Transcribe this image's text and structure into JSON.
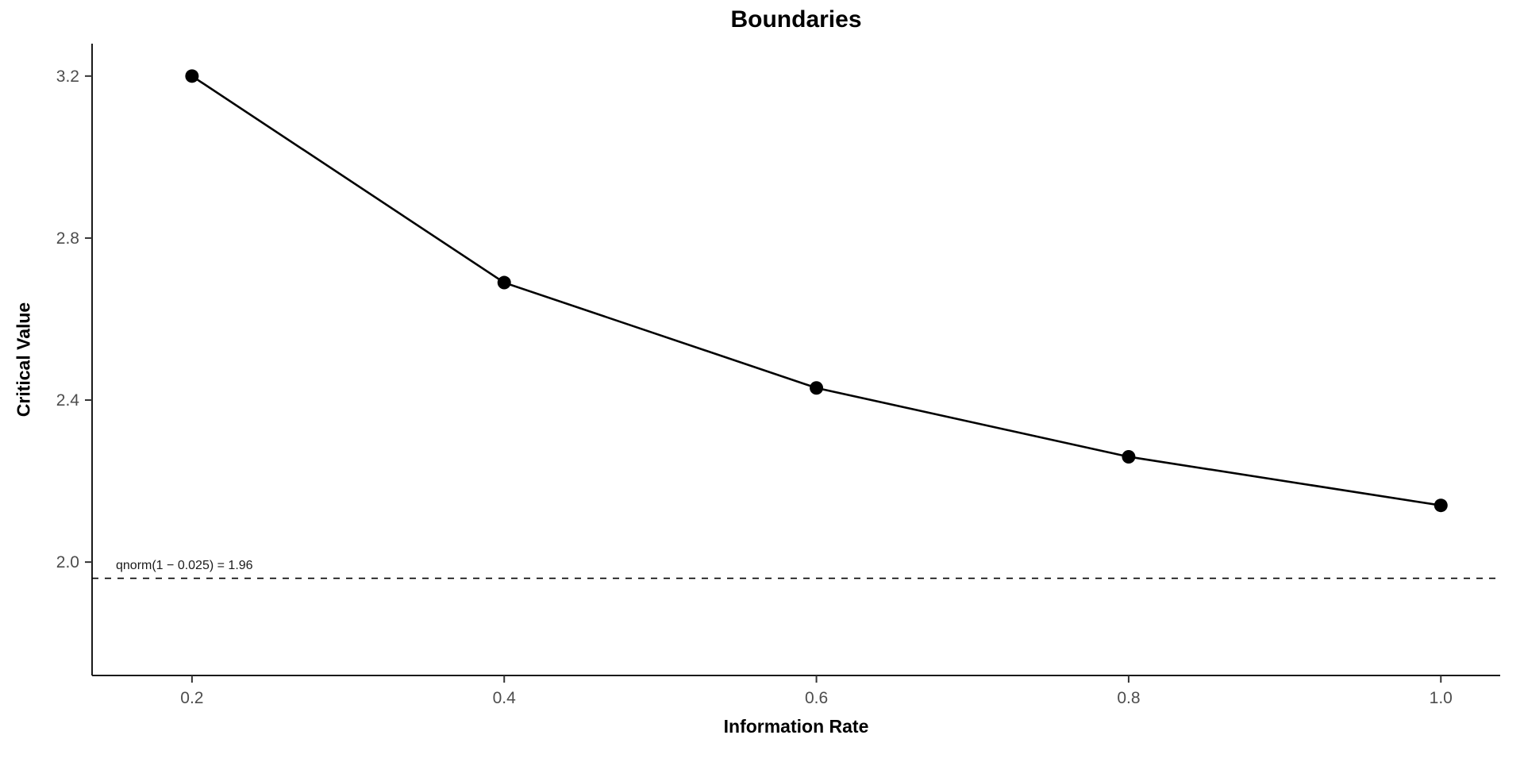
{
  "chart_data": {
    "type": "line",
    "title": "Boundaries",
    "xlabel": "Information Rate",
    "ylabel": "Critical Value",
    "x": [
      0.2,
      0.4,
      0.6,
      0.8,
      1.0
    ],
    "y": [
      3.2,
      2.69,
      2.43,
      2.26,
      2.14
    ],
    "series": [
      {
        "name": "critical-value-boundary",
        "x": [
          0.2,
          0.4,
          0.6,
          0.8,
          1.0
        ],
        "values": [
          3.2,
          2.69,
          2.43,
          2.26,
          2.14
        ]
      }
    ],
    "x_ticks": [
      0.2,
      0.4,
      0.6,
      0.8,
      1.0
    ],
    "x_tick_labels": [
      "0.2",
      "0.4",
      "0.6",
      "0.8",
      "1.0"
    ],
    "y_ticks": [
      2.0,
      2.4,
      2.8,
      3.2
    ],
    "y_tick_labels": [
      "2.0",
      "2.4",
      "2.8",
      "3.2"
    ],
    "xlim": [
      0.136,
      1.038
    ],
    "ylim": [
      1.72,
      3.28
    ],
    "reference_line": {
      "y": 1.96,
      "style": "dashed",
      "label": "qnorm(1 − 0.025) = 1.96"
    },
    "grid": false,
    "legend": false,
    "marker": {
      "shape": "circle",
      "radius": 8.5
    },
    "colors": {
      "line": "#000000",
      "point": "#000000",
      "axis": "#1a1a1a",
      "tick": "#333333",
      "tick_label": "#4d4d4d",
      "reference": "#000000",
      "background": "#ffffff"
    }
  }
}
